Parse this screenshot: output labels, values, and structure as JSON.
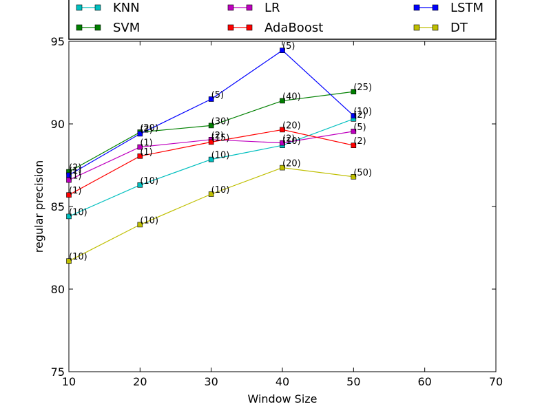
{
  "chart_data": {
    "type": "line",
    "title": "",
    "xlabel": "Window Size",
    "ylabel": "regular precision",
    "xlim": [
      10,
      70
    ],
    "ylim": [
      75,
      95
    ],
    "x_ticks": [
      "10",
      "20",
      "30",
      "40",
      "50",
      "60",
      "70"
    ],
    "y_ticks": [
      "75",
      "80",
      "85",
      "90",
      "95"
    ],
    "grid": false,
    "legend_position": "top (above plot, 3 columns)",
    "x": [
      10,
      20,
      30,
      40,
      50
    ],
    "series": [
      {
        "name": "KNN",
        "color": "#00bfbf",
        "marker": "square",
        "values": [
          84.4,
          86.3,
          87.85,
          88.7,
          90.3
        ],
        "labels": [
          "(10)",
          "(10)",
          "(10)",
          "(10)",
          "(2)"
        ]
      },
      {
        "name": "SVM",
        "color": "#008000",
        "marker": "square",
        "values": [
          87.1,
          89.5,
          89.9,
          91.4,
          91.95
        ],
        "labels": [
          "(2)",
          "(20)",
          "(30)",
          "(40)",
          "(25)"
        ]
      },
      {
        "name": "LR",
        "color": "#bf00bf",
        "marker": "square",
        "values": [
          86.6,
          88.6,
          89.05,
          88.85,
          89.55
        ],
        "labels": [
          "(1)",
          "(1)",
          "(2)",
          "(2)",
          "(5)"
        ]
      },
      {
        "name": "AdaBoost",
        "color": "#ff0000",
        "marker": "square",
        "values": [
          85.7,
          88.05,
          88.9,
          89.65,
          88.7
        ],
        "labels": [
          "(1)",
          "(1)",
          "(15)",
          "(20)",
          "(2)"
        ]
      },
      {
        "name": "LSTM",
        "color": "#0000ff",
        "marker": "square",
        "values": [
          86.9,
          89.4,
          91.5,
          94.45,
          90.5
        ],
        "labels": [
          "(1)",
          "(2)",
          "(5)",
          "(5)",
          "(10)"
        ]
      },
      {
        "name": "DT",
        "color": "#bfbf00",
        "marker": "square",
        "values": [
          81.7,
          83.9,
          85.75,
          87.35,
          86.8
        ],
        "labels": [
          "(10)",
          "(10)",
          "(10)",
          "(20)",
          "(50)"
        ]
      }
    ]
  }
}
